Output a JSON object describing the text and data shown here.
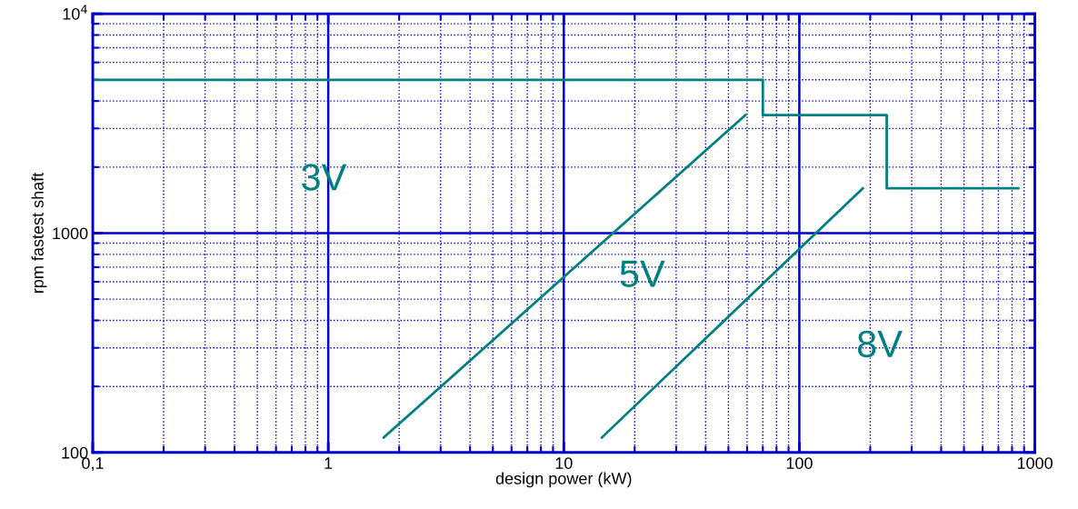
{
  "chart_data": {
    "type": "line",
    "xlabel": "design power (kW)",
    "ylabel": "rpm fastest shaft",
    "log": "xy",
    "grid": true,
    "xlim": [
      0.1,
      1000
    ],
    "xticks": [
      {
        "value": 0.1,
        "label": "0,1"
      },
      1,
      10,
      100,
      1000,
      {
        "value": 0.2,
        "label": null
      },
      {
        "value": 0.3,
        "label": null
      },
      {
        "value": 0.4,
        "label": null
      },
      {
        "value": 0.5,
        "label": null
      },
      {
        "value": 0.6,
        "label": null
      },
      {
        "value": 0.7,
        "label": null
      },
      {
        "value": 0.8,
        "label": null
      },
      {
        "value": 0.9,
        "label": null
      },
      {
        "value": 2,
        "label": null
      },
      {
        "value": 3,
        "label": null
      },
      {
        "value": 4,
        "label": null
      },
      {
        "value": 5,
        "label": null
      },
      {
        "value": 6,
        "label": null
      },
      {
        "value": 7,
        "label": null
      },
      {
        "value": 8,
        "label": null
      },
      {
        "value": 9,
        "label": null
      },
      {
        "value": 20,
        "label": null
      },
      {
        "value": 30,
        "label": null
      },
      {
        "value": 40,
        "label": null
      },
      {
        "value": 50,
        "label": null
      },
      {
        "value": 60,
        "label": null
      },
      {
        "value": 70,
        "label": null
      },
      {
        "value": 80,
        "label": null
      },
      {
        "value": 90,
        "label": null
      },
      {
        "value": 200,
        "label": null
      },
      {
        "value": 300,
        "label": null
      },
      {
        "value": 400,
        "label": null
      },
      {
        "value": 500,
        "label": null
      },
      {
        "value": 600,
        "label": null
      },
      {
        "value": 700,
        "label": null
      },
      {
        "value": 800,
        "label": null
      },
      {
        "value": 900,
        "label": null
      }
    ],
    "ylim": [
      100,
      10000
    ],
    "yticks": [
      100,
      1000,
      {
        "value": 10000,
        "label": "10$^{4}$"
      },
      {
        "value": 200,
        "label": null
      },
      {
        "value": 300,
        "label": null
      },
      {
        "value": 400,
        "label": null
      },
      {
        "value": 500,
        "label": null
      },
      {
        "value": 600,
        "label": null
      },
      {
        "value": 700,
        "label": null
      },
      {
        "value": 800,
        "label": null
      },
      {
        "value": 900,
        "label": null
      },
      {
        "value": 2000,
        "label": null
      },
      {
        "value": 3000,
        "label": null
      },
      {
        "value": 4000,
        "label": null
      },
      {
        "value": 5000,
        "label": null
      },
      {
        "value": 6000,
        "label": null
      },
      {
        "value": 7000,
        "label": null
      },
      {
        "value": 8000,
        "label": null
      },
      {
        "value": 9000,
        "label": null
      }
    ],
    "series": [
      {
        "color": "#008080",
        "x": [
          0.1,
          70,
          70,
          235,
          235,
          850
        ],
        "values": [
          5000,
          5000,
          3450,
          3450,
          1600,
          1600
        ]
      },
      {
        "color": "#008080",
        "x": [
          1.72,
          59
        ],
        "values": [
          117,
          3450
        ]
      },
      {
        "color": "#008080",
        "x": [
          14.5,
          186
        ],
        "values": [
          117,
          1600
        ]
      }
    ],
    "annotations": [
      "3V",
      "5V",
      "8V"
    ]
  }
}
